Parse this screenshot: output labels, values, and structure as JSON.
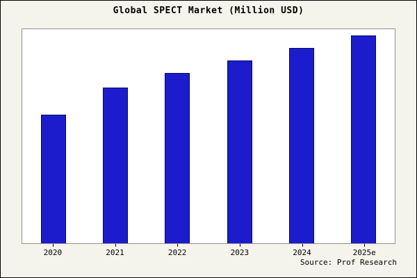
{
  "chart_data": {
    "type": "bar",
    "title": "Global SPECT Market (Million USD)",
    "categories": [
      "2020",
      "2021",
      "2022",
      "2023",
      "2024",
      "2025e"
    ],
    "values": [
      62,
      75,
      82,
      88,
      94,
      100
    ],
    "value_note": "relative scale estimated from bar heights; no y-axis tick labels shown in chart",
    "xlabel": "",
    "ylabel": "",
    "ylim": [
      0,
      103
    ],
    "grid": false,
    "legend": false,
    "bar_color": "#1c1ccd",
    "bar_border_color": "#000a66",
    "plot_background": "#ffffff",
    "outer_background": "#f4f3ec",
    "source_note": "Source: Prof Research"
  }
}
